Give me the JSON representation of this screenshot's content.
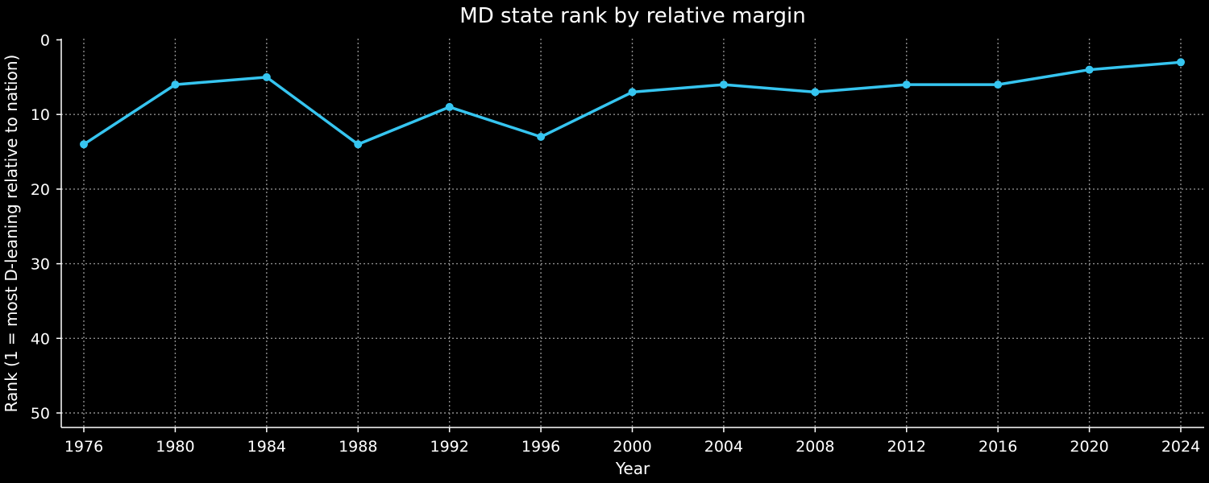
{
  "chart_data": {
    "type": "line",
    "title": "MD state rank by relative margin",
    "xlabel": "Year",
    "ylabel": "Rank (1 = most D-leaning relative to nation)",
    "x": [
      1976,
      1980,
      1984,
      1988,
      1992,
      1996,
      2000,
      2004,
      2008,
      2012,
      2016,
      2020,
      2024
    ],
    "series": [
      {
        "values": [
          14,
          6,
          5,
          14,
          9,
          13,
          7,
          6,
          7,
          6,
          6,
          4,
          3
        ],
        "color": "#36c5f0"
      }
    ],
    "xticks": [
      "1976",
      "1980",
      "1984",
      "1988",
      "1992",
      "1996",
      "2000",
      "2004",
      "2008",
      "2012",
      "2016",
      "2020",
      "2024"
    ],
    "yticks": [
      "0",
      "10",
      "20",
      "30",
      "40",
      "50"
    ],
    "ylim": [
      52,
      0
    ],
    "y_inverted": true,
    "grid": true,
    "legend": false
  }
}
